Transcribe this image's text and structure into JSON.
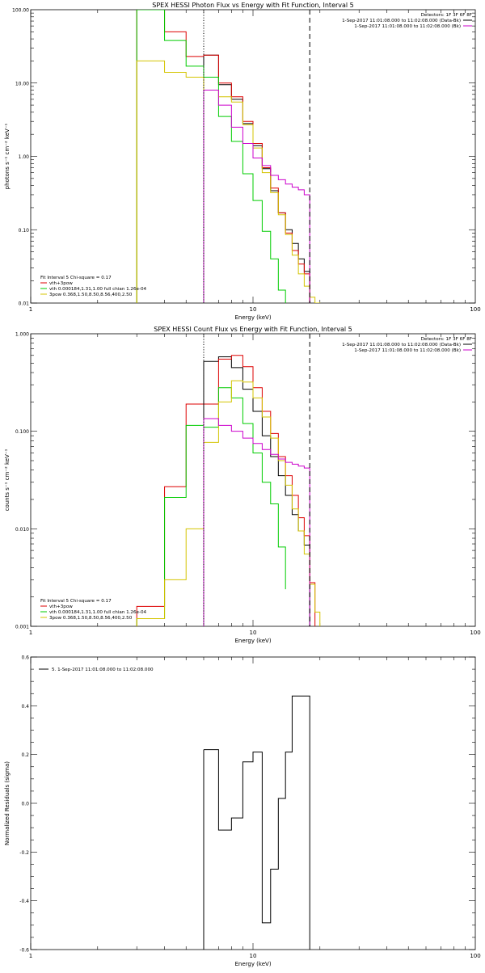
{
  "chart_data": [
    {
      "type": "line",
      "title": "SPEX HESSI Photon Flux vs Energy with Fit Function, Interval 5",
      "xlabel": "Energy (keV)",
      "ylabel": "photons s⁻¹ cm⁻² keV⁻¹",
      "x_scale": "log",
      "y_scale": "log",
      "xlim": [
        1,
        100
      ],
      "ylim": [
        0.01,
        100
      ],
      "x_ticks": [
        {
          "value": 1,
          "label": "1"
        },
        {
          "value": 10,
          "label": "10"
        },
        {
          "value": 100,
          "label": "100"
        }
      ],
      "y_ticks": [
        {
          "value": 0.01,
          "label": "0.01"
        },
        {
          "value": 0.1,
          "label": "0.10"
        },
        {
          "value": 1,
          "label": "1.00"
        },
        {
          "value": 10,
          "label": "10.00"
        },
        {
          "value": 100,
          "label": "100.00"
        }
      ],
      "vlines": [
        {
          "x": 6.0,
          "style": "dotted",
          "color": "#000000"
        },
        {
          "x": 18.0,
          "style": "dashed",
          "color": "#000000"
        }
      ],
      "header": {
        "detectors": "Detectors: 1F 3F 6F 8F",
        "line1": "1-Sep-2017 11:01:08.000 to 11:02:08.000 (Data-Bk)",
        "line2": "1-Sep-2017 11:01:08.000 to 11:02:08.000 (Bk)"
      },
      "legend": {
        "position": "bottom-left",
        "title": "Fit Interval 5   Chi-square = 0.17",
        "items": [
          {
            "label": "vth+3pow",
            "color": "#dd0000"
          },
          {
            "label": "vth 0.000184,1.31,1.00  full  chian 1.26e-04",
            "color": "#00cc00"
          },
          {
            "label": "3pow 0.368,1.50,8.50,8.56,400,2.50",
            "color": "#d4c400"
          }
        ]
      },
      "series": [
        {
          "color": "#000000",
          "edges": [
            6,
            7,
            8,
            9,
            10,
            11,
            12,
            13,
            14,
            15,
            16,
            17,
            18
          ],
          "values": [
            24,
            9.5,
            6,
            2.8,
            1.4,
            0.68,
            0.34,
            0.17,
            0.1,
            0.065,
            0.04,
            0.027
          ]
        },
        {
          "color": "#dd0000",
          "edges": [
            3,
            4,
            5,
            6,
            7,
            8,
            9,
            10,
            11,
            12,
            13,
            14,
            15,
            16,
            17,
            18
          ],
          "values": [
            100,
            50,
            23,
            24,
            10,
            6.5,
            3,
            1.5,
            0.7,
            0.37,
            0.17,
            0.09,
            0.052,
            0.034,
            0.025
          ]
        },
        {
          "color": "#00cc00",
          "edges": [
            3,
            4,
            5,
            6,
            7,
            8,
            9,
            10,
            11,
            12,
            13,
            14
          ],
          "values": [
            100,
            38,
            17,
            12,
            3.5,
            1.6,
            0.58,
            0.25,
            0.095,
            0.04,
            0.015
          ]
        },
        {
          "color": "#d4c400",
          "edges": [
            3,
            4,
            5,
            6,
            7,
            8,
            9,
            10,
            11,
            12,
            13,
            14,
            15,
            16,
            17,
            18,
            19,
            20
          ],
          "values": [
            20,
            14,
            12,
            8,
            6.5,
            5.5,
            2.7,
            1.3,
            0.6,
            0.32,
            0.16,
            0.086,
            0.045,
            0.025,
            0.017,
            0.012,
            0.01
          ]
        },
        {
          "color": "#cc00cc",
          "edges": [
            6,
            7,
            8,
            9,
            10,
            11,
            12,
            13,
            14,
            15,
            16,
            17,
            18
          ],
          "values": [
            8,
            5,
            2.5,
            1.5,
            0.95,
            0.75,
            0.55,
            0.48,
            0.42,
            0.38,
            0.35,
            0.3
          ]
        }
      ]
    },
    {
      "type": "line",
      "title": "SPEX HESSI Count Flux vs Energy with Fit Function, Interval 5",
      "xlabel": "Energy (keV)",
      "ylabel": "counts s⁻¹ cm⁻² keV⁻¹",
      "x_scale": "log",
      "y_scale": "log",
      "xlim": [
        1,
        100
      ],
      "ylim": [
        0.001,
        1
      ],
      "x_ticks": [
        {
          "value": 1,
          "label": "1"
        },
        {
          "value": 10,
          "label": "10"
        },
        {
          "value": 100,
          "label": "100"
        }
      ],
      "y_ticks": [
        {
          "value": 0.001,
          "label": "0.001"
        },
        {
          "value": 0.01,
          "label": "0.010"
        },
        {
          "value": 0.1,
          "label": "0.100"
        },
        {
          "value": 1,
          "label": "1.000"
        }
      ],
      "vlines": [
        {
          "x": 6.0,
          "style": "dotted",
          "color": "#000000"
        },
        {
          "x": 18.0,
          "style": "dashed",
          "color": "#000000"
        }
      ],
      "header": {
        "detectors": "Detectors: 1F 3F 6F 8F",
        "line1": "1-Sep-2017 11:01:08.000 to 11:02:08.000 (Data-Bk)",
        "line2": "1-Sep-2017 11:01:08.000 to 11:02:08.000 (Bk)"
      },
      "legend": {
        "position": "bottom-left",
        "title": "Fit Interval 5   Chi-square = 0.17",
        "items": [
          {
            "label": "vth+3pow",
            "color": "#dd0000"
          },
          {
            "label": "vth 0.000184,1.31,1.00  full  chian 1.26e-04",
            "color": "#00cc00"
          },
          {
            "label": "3pow 0.368,1.50,8.50,8.56,400,2.50",
            "color": "#d4c400"
          }
        ]
      },
      "series": [
        {
          "color": "#000000",
          "edges": [
            6,
            7,
            8,
            9,
            10,
            11,
            12,
            13,
            14,
            15,
            16,
            17,
            18
          ],
          "values": [
            0.52,
            0.58,
            0.45,
            0.27,
            0.16,
            0.09,
            0.055,
            0.035,
            0.022,
            0.014,
            0.0095,
            0.0068
          ]
        },
        {
          "color": "#dd0000",
          "edges": [
            3,
            4,
            5,
            6,
            7,
            8,
            9,
            10,
            11,
            12,
            13,
            14,
            15,
            16,
            17,
            18,
            19
          ],
          "values": [
            0.0016,
            0.027,
            0.19,
            0.19,
            0.55,
            0.6,
            0.46,
            0.28,
            0.16,
            0.095,
            0.055,
            0.035,
            0.022,
            0.013,
            0.0085,
            0.0028
          ]
        },
        {
          "color": "#00cc00",
          "edges": [
            3,
            4,
            5,
            6,
            7,
            8,
            9,
            10,
            11,
            12,
            13,
            14
          ],
          "values": [
            0.0012,
            0.021,
            0.115,
            0.11,
            0.28,
            0.22,
            0.12,
            0.06,
            0.03,
            0.018,
            0.0065,
            0.0024
          ]
        },
        {
          "color": "#d4c400",
          "edges": [
            3,
            4,
            5,
            6,
            7,
            8,
            9,
            10,
            11,
            12,
            13,
            14,
            15,
            16,
            17,
            18,
            19,
            20
          ],
          "values": [
            0.0012,
            0.003,
            0.01,
            0.077,
            0.2,
            0.33,
            0.32,
            0.22,
            0.14,
            0.085,
            0.05,
            0.028,
            0.016,
            0.0095,
            0.0055,
            0.0027,
            0.0014
          ]
        },
        {
          "color": "#cc00cc",
          "edges": [
            6,
            7,
            8,
            9,
            10,
            11,
            12,
            13,
            14,
            15,
            16,
            17,
            18
          ],
          "values": [
            0.135,
            0.115,
            0.1,
            0.085,
            0.075,
            0.065,
            0.058,
            0.052,
            0.048,
            0.046,
            0.044,
            0.042
          ]
        }
      ]
    },
    {
      "type": "line",
      "title": "",
      "xlabel": "Energy (keV)",
      "ylabel": "Normalized Residuals (sigma)",
      "x_scale": "log",
      "y_scale": "linear",
      "xlim": [
        1,
        100
      ],
      "ylim": [
        -0.6,
        0.6
      ],
      "x_ticks": [
        {
          "value": 1,
          "label": "1"
        },
        {
          "value": 10,
          "label": "10"
        },
        {
          "value": 100,
          "label": "100"
        }
      ],
      "y_ticks": [
        {
          "value": -0.6,
          "label": "-0.6"
        },
        {
          "value": -0.4,
          "label": "-0.4"
        },
        {
          "value": -0.2,
          "label": "-0.2"
        },
        {
          "value": 0.0,
          "label": "0.0"
        },
        {
          "value": 0.2,
          "label": "0.2"
        },
        {
          "value": 0.4,
          "label": "0.4"
        },
        {
          "value": 0.6,
          "label": "0.6"
        }
      ],
      "legend": {
        "position": "top-left",
        "items": [
          {
            "label": "5.  1-Sep-2017 11:01:08.000 to 11:02:08.000",
            "color": "#000000"
          }
        ]
      },
      "series": [
        {
          "color": "#000000",
          "edges": [
            6,
            7,
            8,
            9,
            10,
            11,
            12,
            13,
            14,
            15,
            16,
            17,
            18
          ],
          "values": [
            0.22,
            -0.11,
            -0.06,
            0.17,
            0.21,
            -0.49,
            -0.27,
            0.02,
            0.21,
            0.44,
            0.44,
            0.44
          ]
        }
      ]
    }
  ]
}
